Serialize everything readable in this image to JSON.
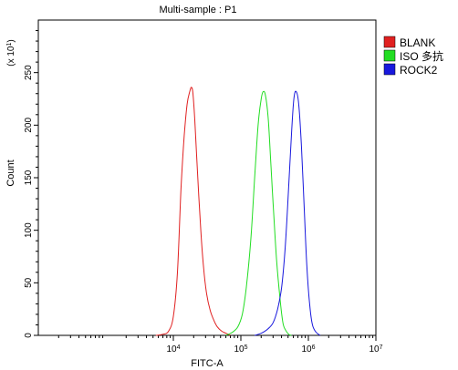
{
  "chart_data": {
    "type": "line",
    "title": "Multi-sample : P1",
    "xlabel": "FITC-A",
    "ylabel": "Count",
    "y_multiplier": {
      "base": "(x 10",
      "exp": "1",
      "close": ")"
    },
    "xscale": "log",
    "xlim": [
      100,
      10000000
    ],
    "ylim": [
      0,
      300
    ],
    "x_ticks": [
      {
        "value": 10000,
        "base": "10",
        "exp": "4"
      },
      {
        "value": 100000,
        "base": "10",
        "exp": "5"
      },
      {
        "value": 1000000,
        "base": "10",
        "exp": "6"
      },
      {
        "value": 10000000,
        "base": "10",
        "exp": "7"
      }
    ],
    "y_ticks": [
      0,
      50,
      100,
      150,
      200,
      250
    ],
    "legend_position": "top-right",
    "series": [
      {
        "name": "BLANK",
        "color": "#e02020",
        "points": [
          [
            5500,
            0
          ],
          [
            7000,
            1
          ],
          [
            8500,
            4
          ],
          [
            10000,
            18
          ],
          [
            11500,
            60
          ],
          [
            13000,
            140
          ],
          [
            14500,
            190
          ],
          [
            16000,
            220
          ],
          [
            17500,
            232
          ],
          [
            18500,
            236
          ],
          [
            19500,
            230
          ],
          [
            21000,
            200
          ],
          [
            23000,
            150
          ],
          [
            25500,
            100
          ],
          [
            28000,
            65
          ],
          [
            31000,
            40
          ],
          [
            35000,
            24
          ],
          [
            40000,
            14
          ],
          [
            45000,
            8
          ],
          [
            52000,
            4
          ],
          [
            60000,
            2
          ],
          [
            70000,
            0
          ]
        ]
      },
      {
        "name": "ISO 多抗",
        "color": "#22dd22",
        "points": [
          [
            60000,
            0
          ],
          [
            75000,
            3
          ],
          [
            90000,
            8
          ],
          [
            105000,
            20
          ],
          [
            120000,
            45
          ],
          [
            140000,
            90
          ],
          [
            160000,
            150
          ],
          [
            180000,
            200
          ],
          [
            200000,
            225
          ],
          [
            215000,
            232
          ],
          [
            232000,
            228
          ],
          [
            255000,
            205
          ],
          [
            280000,
            160
          ],
          [
            310000,
            110
          ],
          [
            340000,
            70
          ],
          [
            380000,
            35
          ],
          [
            420000,
            12
          ],
          [
            460000,
            5
          ],
          [
            510000,
            1
          ],
          [
            560000,
            0
          ]
        ]
      },
      {
        "name": "ROCK2",
        "color": "#1818dd",
        "points": [
          [
            160000,
            0
          ],
          [
            200000,
            2
          ],
          [
            250000,
            6
          ],
          [
            300000,
            12
          ],
          [
            350000,
            25
          ],
          [
            400000,
            45
          ],
          [
            450000,
            80
          ],
          [
            500000,
            130
          ],
          [
            560000,
            190
          ],
          [
            610000,
            225
          ],
          [
            660000,
            232
          ],
          [
            720000,
            220
          ],
          [
            790000,
            180
          ],
          [
            870000,
            120
          ],
          [
            950000,
            65
          ],
          [
            1050000,
            28
          ],
          [
            1150000,
            10
          ],
          [
            1300000,
            3
          ],
          [
            1500000,
            0
          ]
        ]
      }
    ]
  }
}
